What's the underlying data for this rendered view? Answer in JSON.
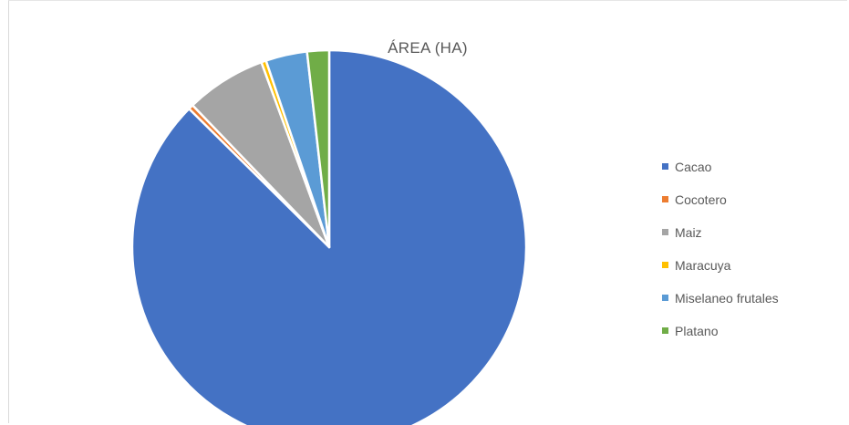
{
  "chart_data": {
    "type": "pie",
    "title": "ÁREA (HA)",
    "categories": [
      "Cacao",
      "Cocotero",
      "Maiz",
      "Maracuya",
      "Miselaneo frutales",
      "Platano"
    ],
    "values": [
      87.4,
      0.4,
      6.6,
      0.4,
      3.4,
      1.8
    ],
    "colors": [
      "#4472C4",
      "#ED7D31",
      "#A5A5A5",
      "#FFC000",
      "#5B9BD5",
      "#70AD47"
    ],
    "legend": "right",
    "start_angle": "12 o'clock, clockwise"
  }
}
